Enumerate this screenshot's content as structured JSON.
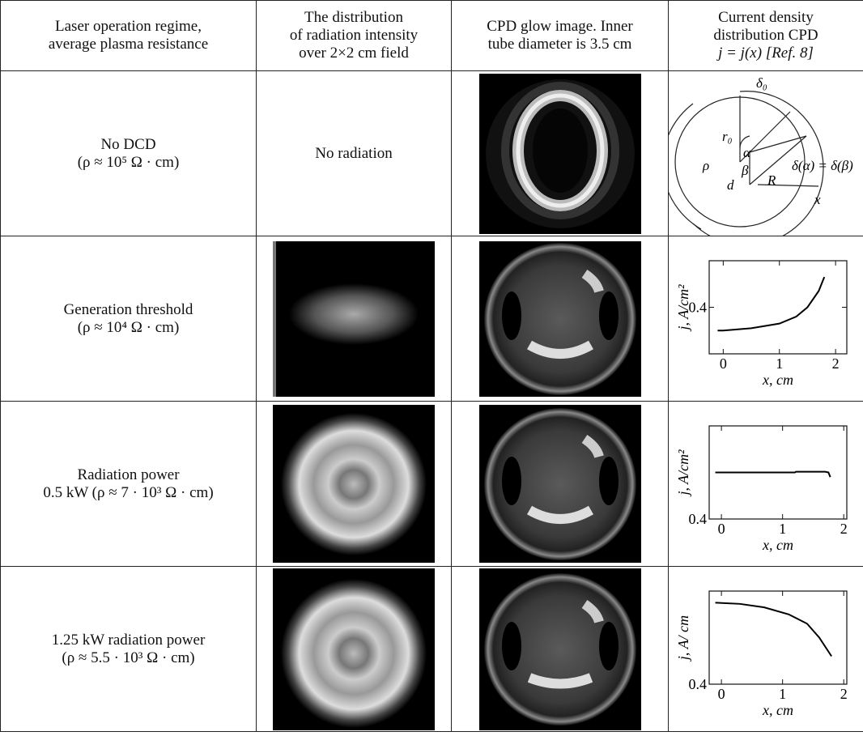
{
  "table": {
    "header": [
      [
        "Laser operation regime,",
        "average plasma resistance"
      ],
      [
        "The distribution",
        "of radiation intensity",
        "over 2×2 cm field"
      ],
      [
        "CPD glow image. Inner",
        "tube diameter is 3.5 cm"
      ],
      [
        "Current density",
        "distribution CPD",
        "j = j(x) [Ref. 8]"
      ]
    ],
    "rows": [
      {
        "regime": [
          "No DCD",
          "(ρ ≈ 10⁵ Ω · cm)"
        ],
        "radiation": "No radiation",
        "diagram": {
          "labels": [
            "δ₀",
            "r₀",
            "α",
            "ρ",
            "β",
            "d",
            "R",
            "x",
            "δ(α) = δ(β)"
          ]
        }
      },
      {
        "regime": [
          "Generation threshold",
          "(ρ ≈ 10⁴ Ω · cm)"
        ],
        "plot": {
          "ylabel": "j, A/cm²",
          "xlabel": "x, cm",
          "xlim": [
            -0.25,
            2.2
          ],
          "ylim": [
            0.2,
            0.6
          ],
          "xticks": [
            0,
            1,
            2
          ],
          "yticks": [
            0.4
          ],
          "x": [
            -0.1,
            0,
            0.5,
            1,
            1.3,
            1.5,
            1.7,
            1.8
          ],
          "y": [
            0.3,
            0.3,
            0.31,
            0.33,
            0.36,
            0.4,
            0.47,
            0.53
          ]
        }
      },
      {
        "regime": [
          "Radiation power",
          "0.5 kW (ρ ≈ 7 · 10³ Ω · cm)"
        ],
        "plot": {
          "ylabel": "j, A/cm²",
          "xlabel": "x, cm",
          "xlim": [
            -0.2,
            2.05
          ],
          "ylim": [
            0.4,
            0.8
          ],
          "xticks": [
            0,
            1,
            2
          ],
          "yticks": [
            0.4
          ],
          "x": [
            -0.1,
            1.2,
            1.22,
            1.7,
            1.75,
            1.78
          ],
          "y": [
            0.6,
            0.6,
            0.603,
            0.603,
            0.6,
            0.58
          ]
        }
      },
      {
        "regime": [
          "1.25 kW radiation power",
          "(ρ ≈ 5.5 · 10³ Ω · cm)"
        ],
        "plot": {
          "ylabel": "j, A/ cm",
          "xlabel": "x, cm",
          "xlim": [
            -0.2,
            2.05
          ],
          "ylim": [
            0.4,
            0.8
          ],
          "xticks": [
            0,
            1,
            2
          ],
          "yticks": [
            0.4
          ],
          "x": [
            -0.1,
            0.3,
            0.7,
            1.1,
            1.4,
            1.6,
            1.8
          ],
          "y": [
            0.75,
            0.745,
            0.73,
            0.7,
            0.66,
            0.6,
            0.52
          ]
        }
      }
    ]
  }
}
